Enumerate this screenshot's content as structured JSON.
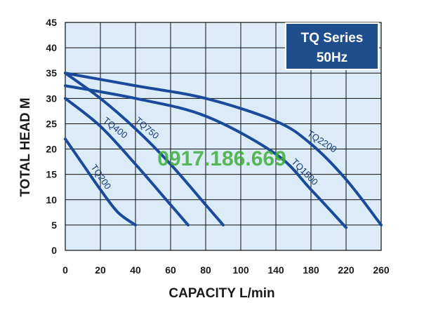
{
  "chart_data": {
    "type": "line",
    "xlabel": "CAPACITY L/min",
    "ylabel": "TOTAL HEAD M",
    "x_ticks": [
      0,
      20,
      40,
      60,
      80,
      100,
      140,
      180,
      220,
      260
    ],
    "y_ticks": [
      0,
      5,
      10,
      15,
      20,
      25,
      30,
      35,
      40,
      45
    ],
    "xlim": [
      0,
      260
    ],
    "ylim": [
      0,
      45
    ],
    "grid": true,
    "annotation": [
      "TQ Series",
      "50Hz"
    ],
    "watermark": "0917.186.669",
    "series": [
      {
        "name": "TQ200",
        "x": [
          0,
          10,
          20,
          30,
          40
        ],
        "y": [
          22,
          17,
          12,
          7.5,
          5
        ]
      },
      {
        "name": "TQ400",
        "x": [
          0,
          20,
          40,
          60,
          70
        ],
        "y": [
          30,
          24.5,
          17,
          9,
          5
        ]
      },
      {
        "name": "TQ750",
        "x": [
          0,
          20,
          40,
          60,
          80,
          90
        ],
        "y": [
          35,
          30,
          24,
          17,
          9,
          5
        ]
      },
      {
        "name": "TQ1500",
        "x": [
          0,
          40,
          80,
          140,
          180,
          220
        ],
        "y": [
          32.5,
          30,
          26.5,
          19,
          12,
          4.5
        ]
      },
      {
        "name": "TQ2200",
        "x": [
          0,
          40,
          80,
          140,
          180,
          220,
          260
        ],
        "y": [
          35,
          32.5,
          30,
          25.5,
          21,
          14,
          5
        ]
      }
    ],
    "colors": {
      "plot_bg": "#dbecf8",
      "grid": "#0d0d0d",
      "curve": "#1b4a9a",
      "badge": "#1f4e8c",
      "watermark": "#3fae3a"
    }
  }
}
